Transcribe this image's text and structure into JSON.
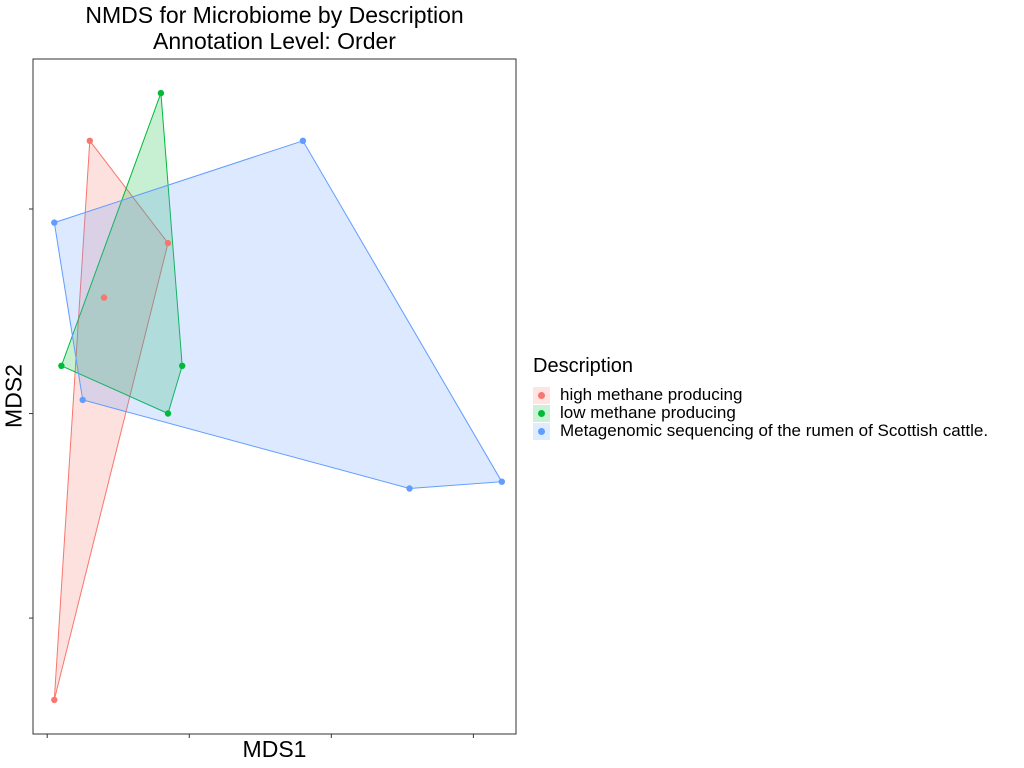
{
  "chart_data": {
    "type": "scatter",
    "title": "NMDS for Microbiome by Description",
    "subtitle": "Annotation Level: Order",
    "xlabel": "MDS1",
    "ylabel": "MDS2",
    "xlim": [
      -0.32,
      0.36
    ],
    "ylim": [
      -0.57,
      0.42
    ],
    "hulls": true,
    "legend_title": "Description",
    "legend_position": "right",
    "series": [
      {
        "name": "high methane producing",
        "color": "#F8766D",
        "points": [
          {
            "x": -0.29,
            "y": -0.52
          },
          {
            "x": -0.24,
            "y": 0.3
          },
          {
            "x": -0.13,
            "y": 0.15
          },
          {
            "x": -0.22,
            "y": 0.07
          }
        ]
      },
      {
        "name": "low methane producing",
        "color": "#00BA38",
        "points": [
          {
            "x": -0.28,
            "y": -0.03
          },
          {
            "x": -0.14,
            "y": 0.37
          },
          {
            "x": -0.11,
            "y": -0.03
          },
          {
            "x": -0.13,
            "y": -0.1
          }
        ]
      },
      {
        "name": "Metagenomic sequencing of the rumen of Scottish cattle.",
        "color": "#619CFF",
        "points": [
          {
            "x": -0.29,
            "y": 0.18
          },
          {
            "x": 0.06,
            "y": 0.3
          },
          {
            "x": 0.34,
            "y": -0.2
          },
          {
            "x": 0.21,
            "y": -0.21
          },
          {
            "x": -0.25,
            "y": -0.08
          }
        ]
      }
    ]
  }
}
